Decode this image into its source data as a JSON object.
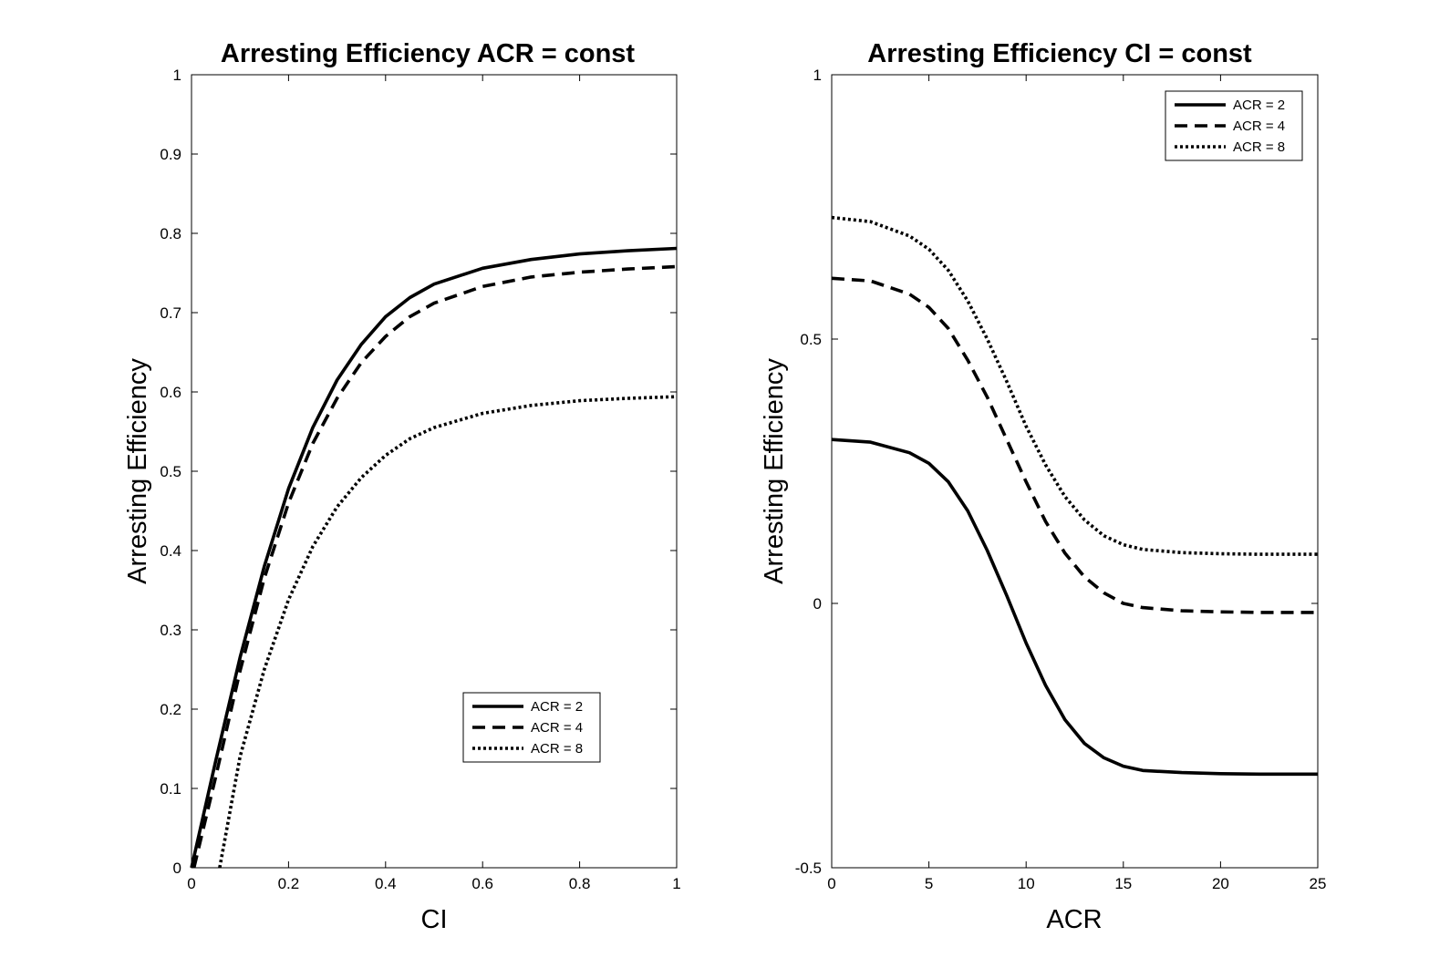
{
  "chart_data": [
    {
      "type": "line",
      "title": "Arresting Efficiency ACR = const",
      "xlabel": "CI",
      "ylabel": "Arresting Efficiency",
      "xlim": [
        0,
        1
      ],
      "ylim": [
        0,
        1
      ],
      "xticks": [
        0,
        0.2,
        0.4,
        0.6,
        0.8,
        1
      ],
      "yticks": [
        0,
        0.1,
        0.2,
        0.3,
        0.4,
        0.5,
        0.6,
        0.7,
        0.8,
        0.9,
        1
      ],
      "xtick_labels": [
        "0",
        "0.2",
        "0.4",
        "0.6",
        "0.8",
        "1"
      ],
      "ytick_labels": [
        "0",
        "0.1",
        "0.2",
        "0.3",
        "0.4",
        "0.5",
        "0.6",
        "0.7",
        "0.8",
        "0.9",
        "1"
      ],
      "grid": false,
      "legend_position": "lower-right",
      "series": [
        {
          "name": "ACR = 2",
          "style": "solid",
          "x": [
            0,
            0.05,
            0.1,
            0.15,
            0.2,
            0.25,
            0.3,
            0.35,
            0.4,
            0.45,
            0.5,
            0.6,
            0.7,
            0.8,
            0.9,
            1.0
          ],
          "y": [
            0.0,
            0.135,
            0.265,
            0.38,
            0.478,
            0.555,
            0.615,
            0.66,
            0.695,
            0.719,
            0.736,
            0.756,
            0.767,
            0.774,
            0.778,
            0.781
          ]
        },
        {
          "name": "ACR = 4",
          "style": "dashed",
          "x": [
            0.005,
            0.05,
            0.1,
            0.15,
            0.2,
            0.25,
            0.3,
            0.35,
            0.4,
            0.45,
            0.5,
            0.6,
            0.7,
            0.8,
            0.9,
            1.0
          ],
          "y": [
            0.0,
            0.115,
            0.248,
            0.365,
            0.46,
            0.535,
            0.592,
            0.637,
            0.67,
            0.695,
            0.712,
            0.733,
            0.745,
            0.751,
            0.755,
            0.758
          ]
        },
        {
          "name": "ACR = 8",
          "style": "dotted",
          "x": [
            0.058,
            0.1,
            0.15,
            0.2,
            0.25,
            0.3,
            0.35,
            0.4,
            0.45,
            0.5,
            0.6,
            0.7,
            0.8,
            0.9,
            1.0
          ],
          "y": [
            0.0,
            0.14,
            0.25,
            0.338,
            0.405,
            0.455,
            0.492,
            0.52,
            0.541,
            0.555,
            0.573,
            0.583,
            0.589,
            0.592,
            0.594
          ]
        }
      ]
    },
    {
      "type": "line",
      "title": "Arresting Efficiency CI = const",
      "xlabel": "ACR",
      "ylabel": "Arresting Efficiency",
      "xlim": [
        0,
        25
      ],
      "ylim": [
        -0.5,
        1
      ],
      "xticks": [
        0,
        5,
        10,
        15,
        20,
        25
      ],
      "yticks": [
        -0.5,
        0,
        0.5,
        1
      ],
      "xtick_labels": [
        "0",
        "5",
        "10",
        "15",
        "20",
        "25"
      ],
      "ytick_labels": [
        "-0.5",
        "0",
        "0.5",
        "1"
      ],
      "grid": false,
      "legend_position": "top-right",
      "series": [
        {
          "name": "ACR = 2",
          "style": "solid",
          "x": [
            0,
            2,
            4,
            5,
            6,
            7,
            8,
            9,
            10,
            11,
            12,
            13,
            14,
            15,
            16,
            18,
            20,
            22,
            25
          ],
          "y": [
            0.31,
            0.305,
            0.285,
            0.265,
            0.23,
            0.175,
            0.1,
            0.015,
            -0.075,
            -0.155,
            -0.22,
            -0.265,
            -0.292,
            -0.308,
            -0.316,
            -0.32,
            -0.322,
            -0.323,
            -0.323
          ]
        },
        {
          "name": "ACR = 4",
          "style": "dashed",
          "x": [
            0,
            2,
            4,
            5,
            6,
            7,
            8,
            9,
            10,
            11,
            12,
            13,
            14,
            15,
            16,
            18,
            20,
            22,
            25
          ],
          "y": [
            0.615,
            0.61,
            0.585,
            0.56,
            0.52,
            0.46,
            0.39,
            0.31,
            0.23,
            0.155,
            0.095,
            0.05,
            0.02,
            0.0,
            -0.008,
            -0.014,
            -0.016,
            -0.017,
            -0.017
          ]
        },
        {
          "name": "ACR = 8",
          "style": "dotted",
          "x": [
            0,
            2,
            4,
            5,
            6,
            7,
            8,
            9,
            10,
            11,
            12,
            13,
            14,
            15,
            16,
            18,
            20,
            22,
            25
          ],
          "y": [
            0.73,
            0.722,
            0.695,
            0.67,
            0.63,
            0.572,
            0.5,
            0.42,
            0.335,
            0.262,
            0.202,
            0.158,
            0.128,
            0.111,
            0.102,
            0.096,
            0.094,
            0.093,
            0.093
          ]
        }
      ]
    }
  ]
}
